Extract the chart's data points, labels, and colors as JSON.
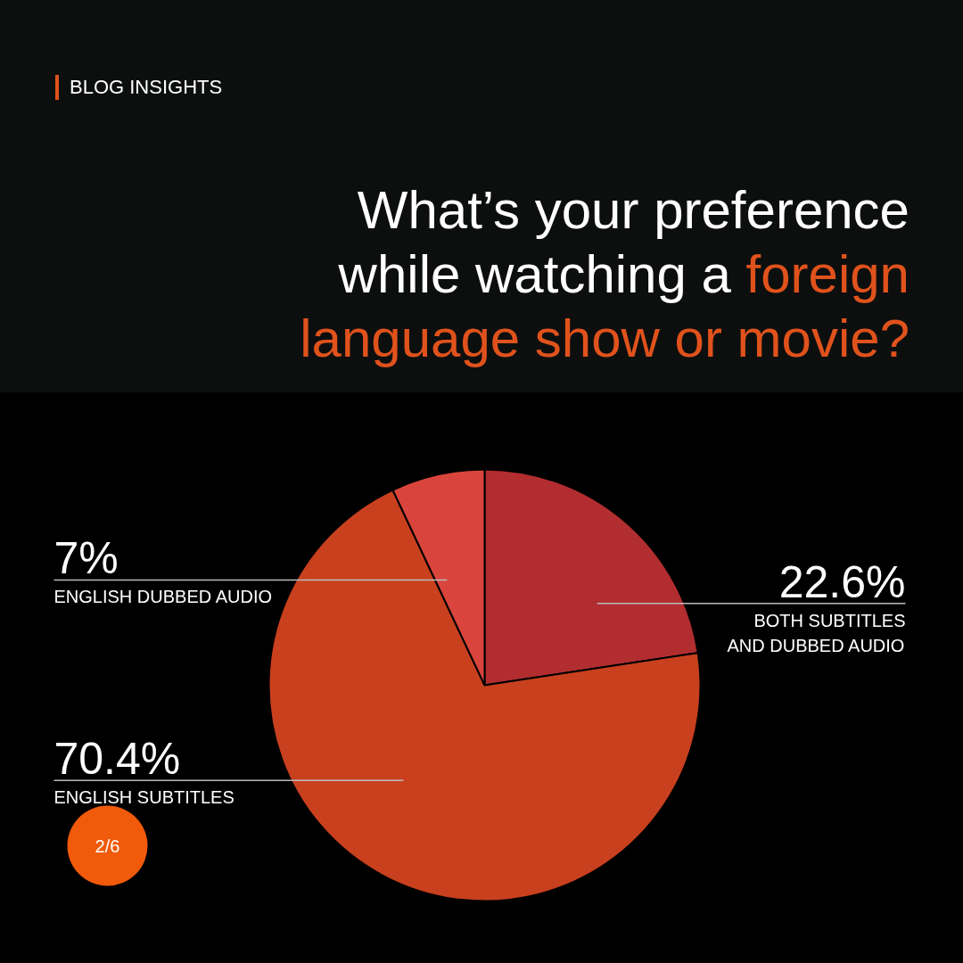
{
  "chart_data": {
    "type": "pie",
    "title": "What’s your preference while watching a",
    "subtitle": "foreign language show or movie?",
    "categories": [
      "BOTH SUBTITLES AND DUBBED AUDIO",
      "ENGLISH SUBTITLES",
      "ENGLISH DUBBED AUDIO"
    ],
    "values": [
      22.6,
      70.4,
      7
    ],
    "value_labels": [
      "22.6%",
      "70.4%",
      "7%"
    ],
    "colors": [
      "#b22d2f",
      "#c9401e",
      "#d9453c"
    ],
    "annotations": [
      "BLOG INSIGHTS",
      "2/6"
    ]
  }
}
